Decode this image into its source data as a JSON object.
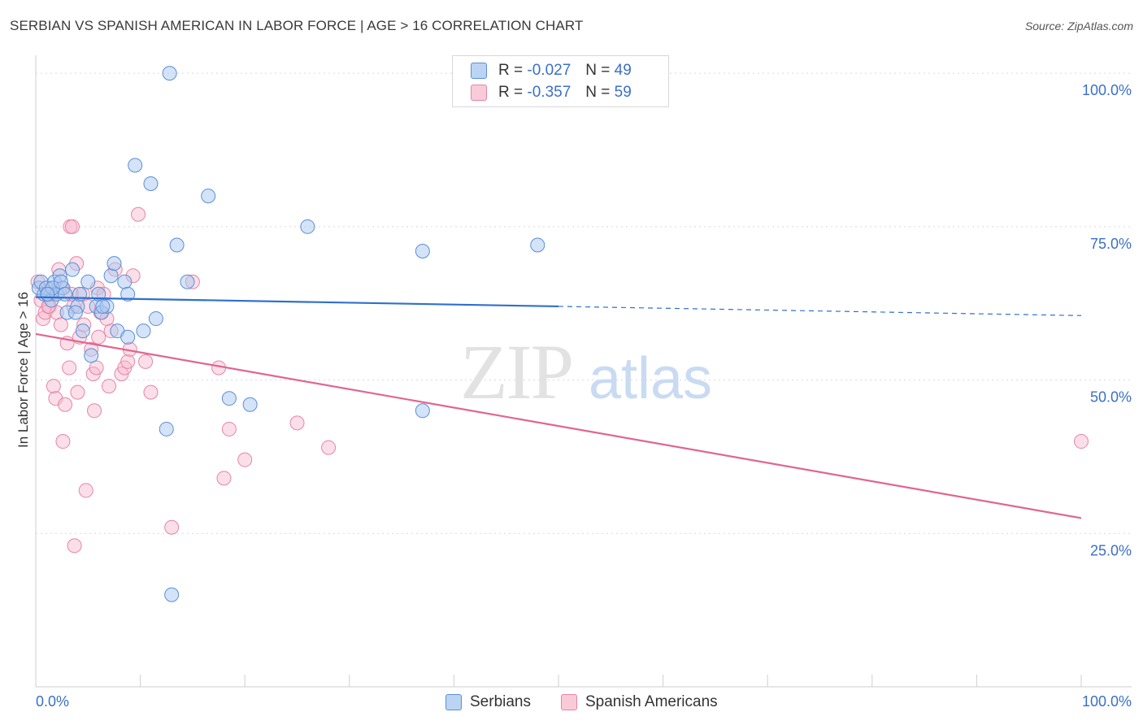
{
  "title": "SERBIAN VS SPANISH AMERICAN IN LABOR FORCE | AGE > 16 CORRELATION CHART",
  "source": "Source: ZipAtlas.com",
  "watermark": {
    "zip": "ZIP",
    "atlas": "atlas"
  },
  "legend": {
    "r_label": "R =",
    "n_label": "N =",
    "serbians": {
      "r": "-0.027",
      "n": "49"
    },
    "spanish": {
      "r": "-0.357",
      "n": "59"
    }
  },
  "colors": {
    "blue_fill": "#a9c8f0",
    "blue_stroke": "#5a8fd6",
    "blue_line": "#2f6fcf",
    "pink_fill": "#f6b8cb",
    "pink_stroke": "#e884a6",
    "pink_line": "#e0668f",
    "grid": "#d9d9d9",
    "axis_label": "#3b6fc9"
  },
  "chart_data": {
    "type": "scatter",
    "title": "SERBIAN VS SPANISH AMERICAN IN LABOR FORCE | AGE > 16 CORRELATION CHART",
    "xlabel": "",
    "ylabel": "In Labor Force | Age > 16",
    "xlim": [
      0,
      100
    ],
    "ylim": [
      0,
      102
    ],
    "x_tick_labels": [
      "0.0%",
      "100.0%"
    ],
    "y_ticks": [
      25,
      50,
      75,
      100
    ],
    "y_tick_labels": [
      "25.0%",
      "50.0%",
      "75.0%",
      "100.0%"
    ],
    "series": [
      {
        "name": "Serbians",
        "r": -0.027,
        "n": 49,
        "trend": {
          "x0": 0,
          "y0": 63.5,
          "x1": 50,
          "y1": 62.0,
          "dash_x1": 100,
          "dash_y1": 60.5
        },
        "points": [
          [
            0.3,
            65
          ],
          [
            0.5,
            66
          ],
          [
            0.8,
            64
          ],
          [
            1,
            65
          ],
          [
            1.2,
            64
          ],
          [
            1.5,
            63
          ],
          [
            1.8,
            66
          ],
          [
            2,
            64
          ],
          [
            2.3,
            67
          ],
          [
            2.6,
            65
          ],
          [
            3,
            61
          ],
          [
            3.5,
            68
          ],
          [
            4,
            62
          ],
          [
            4.2,
            64
          ],
          [
            4.5,
            58
          ],
          [
            5,
            66
          ],
          [
            5.3,
            54
          ],
          [
            5.8,
            62
          ],
          [
            6,
            64
          ],
          [
            6.3,
            61
          ],
          [
            6.8,
            62
          ],
          [
            7.2,
            67
          ],
          [
            7.5,
            69
          ],
          [
            7.8,
            58
          ],
          [
            8.5,
            66
          ],
          [
            8.8,
            64
          ],
          [
            8.8,
            57
          ],
          [
            9.5,
            85
          ],
          [
            10.3,
            58
          ],
          [
            11,
            82
          ],
          [
            11.5,
            60
          ],
          [
            12.5,
            42
          ],
          [
            12.8,
            100
          ],
          [
            13,
            15
          ],
          [
            13.5,
            72
          ],
          [
            14.5,
            66
          ],
          [
            16.5,
            80
          ],
          [
            18.5,
            47
          ],
          [
            20.5,
            46
          ],
          [
            26,
            75
          ],
          [
            37,
            71
          ],
          [
            37,
            45
          ],
          [
            48,
            72
          ],
          [
            1.6,
            65
          ],
          [
            2.4,
            66
          ],
          [
            3.8,
            61
          ],
          [
            6.4,
            62
          ],
          [
            1.1,
            64
          ],
          [
            2.8,
            64
          ]
        ]
      },
      {
        "name": "Spanish Americans",
        "r": -0.357,
        "n": 59,
        "trend": {
          "x0": 0,
          "y0": 57.5,
          "x1": 100,
          "y1": 27.5
        },
        "points": [
          [
            0.2,
            66
          ],
          [
            0.5,
            63
          ],
          [
            0.7,
            60
          ],
          [
            0.9,
            61
          ],
          [
            1.1,
            65
          ],
          [
            1.3,
            62
          ],
          [
            1.5,
            64
          ],
          [
            1.7,
            49
          ],
          [
            1.9,
            47
          ],
          [
            2,
            61
          ],
          [
            2.2,
            68
          ],
          [
            2.4,
            59
          ],
          [
            2.5,
            65
          ],
          [
            2.6,
            40
          ],
          [
            2.8,
            46
          ],
          [
            3,
            56
          ],
          [
            3.2,
            52
          ],
          [
            3.3,
            75
          ],
          [
            3.5,
            75
          ],
          [
            3.6,
            62
          ],
          [
            3.7,
            23
          ],
          [
            3.9,
            69
          ],
          [
            4,
            48
          ],
          [
            4.2,
            57
          ],
          [
            4.5,
            64
          ],
          [
            4.6,
            59
          ],
          [
            4.8,
            32
          ],
          [
            5,
            62
          ],
          [
            5.3,
            55
          ],
          [
            5.5,
            51
          ],
          [
            5.6,
            45
          ],
          [
            5.8,
            52
          ],
          [
            5.9,
            65
          ],
          [
            6,
            57
          ],
          [
            6.2,
            61
          ],
          [
            6.5,
            64
          ],
          [
            7,
            49
          ],
          [
            7.2,
            58
          ],
          [
            7.6,
            68
          ],
          [
            8.2,
            51
          ],
          [
            8.5,
            52
          ],
          [
            8.8,
            53
          ],
          [
            9.3,
            67
          ],
          [
            9.8,
            77
          ],
          [
            10.5,
            53
          ],
          [
            11,
            48
          ],
          [
            13,
            26
          ],
          [
            15,
            66
          ],
          [
            17.5,
            52
          ],
          [
            18,
            34
          ],
          [
            18.5,
            42
          ],
          [
            20,
            37
          ],
          [
            25,
            43
          ],
          [
            28,
            39
          ],
          [
            100,
            40
          ],
          [
            1.2,
            62
          ],
          [
            3.4,
            64
          ],
          [
            6.8,
            60
          ],
          [
            9,
            55
          ]
        ]
      }
    ]
  },
  "bottom_legend": [
    "Serbians",
    "Spanish Americans"
  ]
}
